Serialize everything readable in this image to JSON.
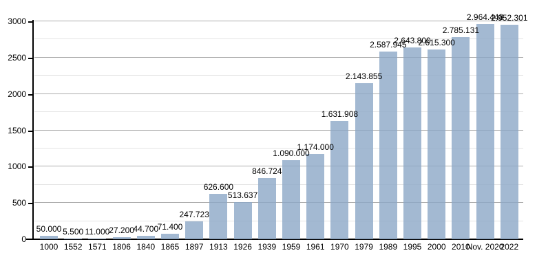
{
  "chart_data": {
    "type": "bar",
    "title": "",
    "xlabel": "",
    "ylabel": "",
    "ylim": [
      0,
      3000
    ],
    "grid": "on",
    "legend": "none",
    "categories": [
      "1000",
      "1552",
      "1571",
      "1806",
      "1840",
      "1865",
      "1897",
      "1913",
      "1926",
      "1939",
      "1959",
      "1961",
      "1970",
      "1979",
      "1989",
      "1995",
      "2000",
      "2010",
      "Nov. 2020",
      "2022"
    ],
    "values_thousands": [
      50.0,
      5.5,
      11.0,
      27.2,
      44.7,
      71.4,
      247.723,
      626.6,
      513.637,
      846.724,
      1090.0,
      1174.0,
      1631.908,
      2143.855,
      2587.945,
      2643.8,
      2615.3,
      2785.131,
      2964.448,
      2952.301
    ],
    "value_labels": [
      "50.000",
      "5.500",
      "11.000",
      "27.200",
      "44.700",
      "71.400",
      "247.723",
      "626.600",
      "513.637",
      "846.724",
      "1.090.000",
      "1.174.000",
      "1.631.908",
      "2.143.855",
      "2.587.945",
      "2.643.800",
      "2.615.300",
      "2.785.131",
      "2.964.448",
      "2.952.301"
    ],
    "y_major_ticks": [
      0,
      500,
      1000,
      1500,
      2000,
      2500,
      3000
    ],
    "y_major_tick_labels": [
      "0",
      "500",
      "1000",
      "1500",
      "2000",
      "2500",
      "3000"
    ],
    "y_minor_ticks": [
      250,
      750,
      1250,
      1750,
      2250,
      2750
    ],
    "colors": {
      "bar_fill": "rgba(140,167,199,0.8)",
      "grid_major": "#ababab",
      "grid_minor": "#e3e3e3",
      "axis": "#000000",
      "text": "#000000",
      "background": "#ffffff"
    }
  }
}
